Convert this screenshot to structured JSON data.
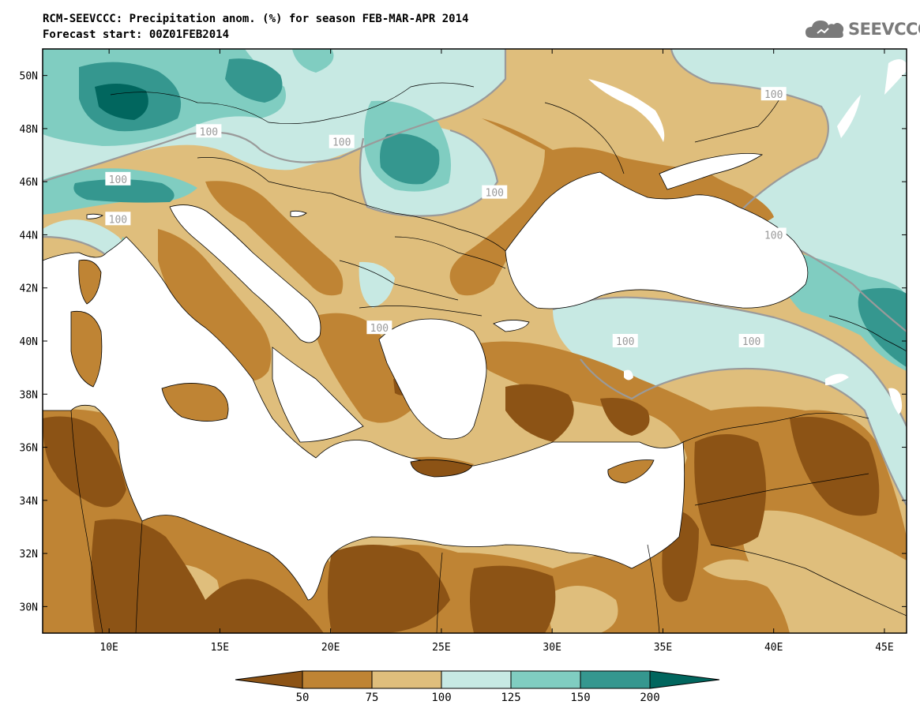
{
  "header": {
    "title_line1": "RCM-SEEVCCC: Precipitation anom. (%) for season FEB-MAR-APR 2014",
    "title_line2": "Forecast start: 00Z01FEB2014"
  },
  "logo": {
    "text": "SEEVCCC",
    "icon": "cloud-icon"
  },
  "map": {
    "lon_range": [
      7,
      46
    ],
    "lat_range": [
      29,
      51
    ],
    "lat_ticks": [
      {
        "value": 50,
        "label": "50N"
      },
      {
        "value": 48,
        "label": "48N"
      },
      {
        "value": 46,
        "label": "46N"
      },
      {
        "value": 44,
        "label": "44N"
      },
      {
        "value": 42,
        "label": "42N"
      },
      {
        "value": 40,
        "label": "40N"
      },
      {
        "value": 38,
        "label": "38N"
      },
      {
        "value": 36,
        "label": "36N"
      },
      {
        "value": 34,
        "label": "34N"
      },
      {
        "value": 32,
        "label": "32N"
      },
      {
        "value": 30,
        "label": "30N"
      }
    ],
    "lon_ticks": [
      {
        "value": 10,
        "label": "10E"
      },
      {
        "value": 15,
        "label": "15E"
      },
      {
        "value": 20,
        "label": "20E"
      },
      {
        "value": 25,
        "label": "25E"
      },
      {
        "value": 30,
        "label": "30E"
      },
      {
        "value": 35,
        "label": "35E"
      },
      {
        "value": 40,
        "label": "40E"
      },
      {
        "value": 45,
        "label": "45E"
      }
    ],
    "contour_labels": [
      {
        "lon": 14.5,
        "lat": 47.9,
        "text": "100"
      },
      {
        "lon": 10.4,
        "lat": 46.1,
        "text": "100"
      },
      {
        "lon": 10.4,
        "lat": 44.6,
        "text": "100"
      },
      {
        "lon": 20.5,
        "lat": 47.5,
        "text": "100"
      },
      {
        "lon": 27.4,
        "lat": 45.6,
        "text": "100"
      },
      {
        "lon": 40.0,
        "lat": 49.3,
        "text": "100"
      },
      {
        "lon": 40.0,
        "lat": 44.0,
        "text": "100"
      },
      {
        "lon": 22.2,
        "lat": 40.5,
        "text": "100"
      },
      {
        "lon": 33.3,
        "lat": 40.0,
        "text": "100"
      },
      {
        "lon": 39.0,
        "lat": 40.0,
        "text": "100"
      }
    ]
  },
  "colorbar": {
    "colors": [
      "#8c5315",
      "#bf8434",
      "#dfbe7c",
      "#c7e9e3",
      "#80cdc1",
      "#35978f",
      "#01665e"
    ],
    "labels": [
      "50",
      "75",
      "100",
      "125",
      "150",
      "200"
    ]
  }
}
